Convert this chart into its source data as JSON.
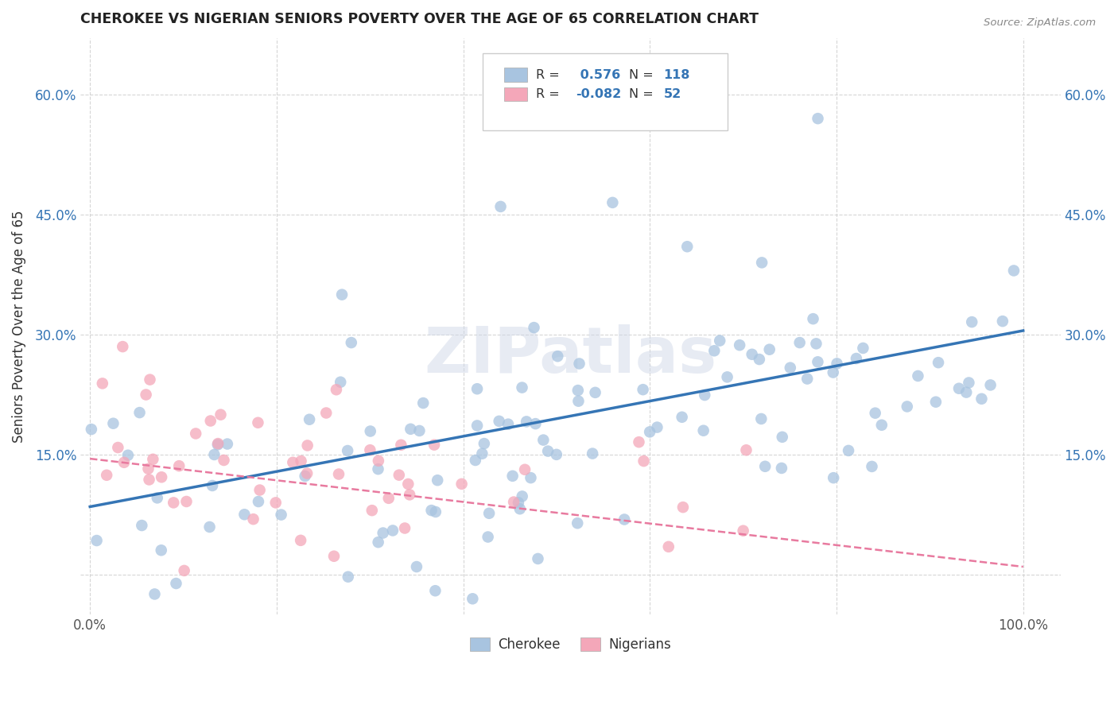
{
  "title": "CHEROKEE VS NIGERIAN SENIORS POVERTY OVER THE AGE OF 65 CORRELATION CHART",
  "source": "Source: ZipAtlas.com",
  "ylabel": "Seniors Poverty Over the Age of 65",
  "x_tick_labels": [
    "0.0%",
    "",
    "",
    "",
    "",
    "100.0%"
  ],
  "y_tick_labels": [
    "",
    "15.0%",
    "30.0%",
    "45.0%",
    "60.0%"
  ],
  "x_ticks": [
    0.0,
    0.2,
    0.4,
    0.6,
    0.8,
    1.0
  ],
  "y_ticks": [
    0.0,
    0.15,
    0.3,
    0.45,
    0.6
  ],
  "xlim": [
    -0.01,
    1.04
  ],
  "ylim": [
    -0.05,
    0.67
  ],
  "cherokee_color": "#a8c4e0",
  "nigerian_color": "#f4a7b9",
  "cherokee_line_color": "#3575b5",
  "nigerian_line_color": "#e87a9f",
  "cherokee_R": 0.576,
  "cherokee_N": 118,
  "nigerian_R": -0.082,
  "nigerian_N": 52,
  "watermark": "ZIPatlas",
  "legend_cherokee_label": "Cherokee",
  "legend_nigerian_label": "Nigerians",
  "background_color": "#ffffff",
  "grid_color": "#cccccc",
  "title_color": "#222222",
  "value_color": "#3575b5"
}
